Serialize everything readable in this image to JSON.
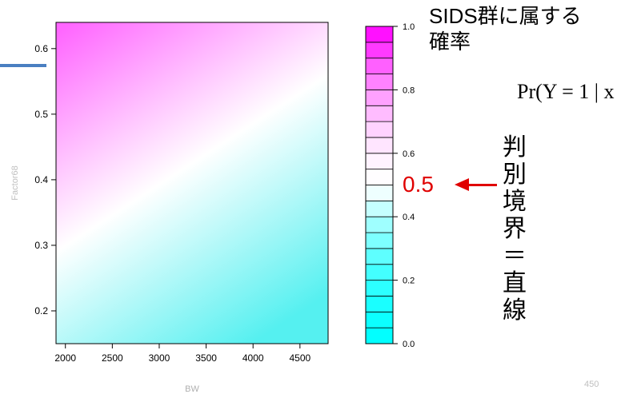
{
  "chart_data": {
    "type": "heatmap",
    "title": "",
    "xlabel": "BW",
    "ylabel": "Factor68",
    "x_range": [
      1900,
      4800
    ],
    "y_range": [
      0.15,
      0.64
    ],
    "xticks": [
      2000,
      2500,
      3000,
      3500,
      4000,
      4500
    ],
    "yticks": [
      0.2,
      0.3,
      0.4,
      0.5,
      0.6
    ],
    "decision_boundary": {
      "x": [
        1900,
        4800
      ],
      "y": [
        0.29,
        0.56
      ],
      "value": 0.5
    },
    "colorbar": {
      "range": [
        0.0,
        1.0
      ],
      "ticks": [
        0.0,
        0.2,
        0.4,
        0.6,
        0.8,
        1.0
      ],
      "levels": 20,
      "low_color": "#00ffff",
      "mid_color": "#ffffff",
      "high_color": "#ff00ff"
    },
    "grid": false
  },
  "annotations": {
    "legend_title": "SIDS群に属する確率",
    "formula": "Pr(Y = 1 | x",
    "threshold_label": "0.5",
    "boundary_text": "判別境界＝直線"
  },
  "page_number": "450",
  "colors": {
    "accent": "#4a7fc1",
    "annotation_red": "#e00000"
  }
}
